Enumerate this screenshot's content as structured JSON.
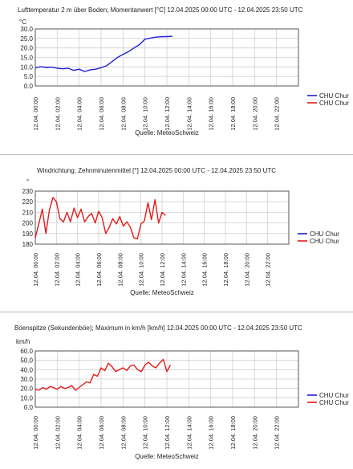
{
  "chart_data": [
    {
      "type": "line",
      "title": "Lufttemperatur 2 m über Boden; Momentanwert [°C]  12.04.2025 00:00 UTC - 12.04.2025 23:50 UTC",
      "ylabel": "°C",
      "source": "Quelle: MeteoSchweiz",
      "ylim": [
        0,
        30
      ],
      "yticks": [
        "0.0",
        "5.0",
        "10.0",
        "15.0",
        "20.0",
        "25.0",
        "30.0"
      ],
      "xticks": [
        "12.04. 00:00",
        "12.04. 02:00",
        "12.04. 04:00",
        "12.04. 06:00",
        "12.04. 08:00",
        "12.04. 10:00",
        "12.04. 12:00",
        "12.04. 14:00",
        "12.04. 16:00",
        "12.04. 18:00",
        "12.04. 20:00",
        "12.04. 22:00"
      ],
      "xlim_hours": [
        0,
        24
      ],
      "grid": true,
      "legend_position": "right",
      "series": [
        {
          "name": "CHU Chur",
          "color": "#1f1fd6",
          "x": [
            0,
            0.5,
            1,
            1.5,
            2,
            2.5,
            3,
            3.5,
            4,
            4.5,
            5,
            5.5,
            6,
            6.5,
            7,
            7.5,
            8,
            8.5,
            9,
            9.5,
            10,
            10.5,
            11,
            11.5,
            12,
            12.5
          ],
          "values": [
            9.5,
            10.1,
            9.7,
            9.9,
            9.3,
            9.0,
            9.3,
            8.2,
            8.8,
            7.6,
            8.4,
            8.8,
            9.6,
            10.6,
            12.8,
            15.0,
            16.6,
            18.1,
            20.0,
            21.7,
            24.6,
            25.2,
            25.7,
            25.9,
            26.0,
            26.1
          ]
        },
        {
          "name": "CHU Chur",
          "color": "#e21b1b",
          "x": [],
          "values": []
        }
      ]
    },
    {
      "type": "line",
      "title": "Windrichtung; Zehnminutenmittel [°]  12.04.2025 00:00 UTC - 12.04.2025 23:50 UTC",
      "ylabel": "°",
      "source": "Quelle: MeteoSchweiz",
      "ylim": [
        180,
        230
      ],
      "yticks": [
        "180",
        "190",
        "200",
        "210",
        "220",
        "230"
      ],
      "xticks": [
        "12.04. 00:00",
        "12.04. 02:00",
        "12.04. 04:00",
        "12.04. 06:00",
        "12.04. 08:00",
        "12.04. 10:00",
        "12.04. 12:00",
        "12.04. 14:00",
        "12.04. 16:00",
        "12.04. 18:00",
        "12.04. 20:00",
        "12.04. 22:00"
      ],
      "xlim_hours": [
        0,
        24
      ],
      "grid": true,
      "legend_position": "right",
      "series": [
        {
          "name": "CHU Chur",
          "color": "#1f1fd6",
          "x": [],
          "values": []
        },
        {
          "name": "CHU Chur",
          "color": "#e21b1b",
          "x": [
            0,
            0.33,
            0.67,
            1,
            1.33,
            1.67,
            2,
            2.33,
            2.67,
            3,
            3.33,
            3.67,
            4,
            4.33,
            4.67,
            5,
            5.33,
            5.67,
            6,
            6.33,
            6.67,
            7,
            7.33,
            7.67,
            8,
            8.33,
            8.67,
            9,
            9.33,
            9.67,
            10,
            10.33,
            10.67,
            11,
            11.33,
            11.67,
            12,
            12.33
          ],
          "values": [
            186,
            199,
            213,
            190,
            212,
            224,
            220,
            204,
            201,
            210,
            201,
            214,
            205,
            213,
            201,
            206,
            209,
            200,
            211,
            205,
            190,
            196,
            204,
            199,
            206,
            197,
            201,
            196,
            186,
            185,
            199,
            202,
            219,
            203,
            222,
            200,
            210,
            207
          ]
        }
      ]
    },
    {
      "type": "line",
      "title": "Böenspitze (Sekundenböe); Maximum in km/h [km/h]  12.04.2025 00:00 UTC - 12.04.2025 23:50 UTC",
      "ylabel": "km/h",
      "source": "Quelle: MeteoSchweiz",
      "ylim": [
        0,
        60
      ],
      "yticks": [
        "0.0",
        "10.0",
        "20.0",
        "30.0",
        "40.0",
        "50.0",
        "60.0"
      ],
      "xticks": [
        "12.04. 00:00",
        "12.04. 02:00",
        "12.04. 04:00",
        "12.04. 06:00",
        "12.04. 08:00",
        "12.04. 10:00",
        "12.04. 12:00",
        "12.04. 14:00",
        "12.04. 16:00",
        "12.04. 18:00",
        "12.04. 20:00",
        "12.04. 22:00"
      ],
      "xlim_hours": [
        0,
        24
      ],
      "grid": true,
      "legend_position": "right",
      "series": [
        {
          "name": "CHU Chur",
          "color": "#1f1fd6",
          "x": [],
          "values": []
        },
        {
          "name": "CHU Chur",
          "color": "#e21b1b",
          "x": [
            0,
            0.33,
            0.67,
            1,
            1.33,
            1.67,
            2,
            2.33,
            2.67,
            3,
            3.33,
            3.67,
            4,
            4.33,
            4.67,
            5,
            5.33,
            5.67,
            6,
            6.33,
            6.67,
            7,
            7.33,
            7.67,
            8,
            8.33,
            8.67,
            9,
            9.33,
            9.67,
            10,
            10.33,
            10.67,
            11,
            11.33,
            11.67,
            12,
            12.33
          ],
          "values": [
            19,
            18,
            21,
            19,
            22,
            21,
            19,
            22,
            20,
            21,
            23,
            18,
            21,
            24,
            27,
            26,
            35,
            33,
            42,
            39,
            47,
            43,
            38,
            40,
            42,
            39,
            44,
            45,
            40,
            38,
            45,
            48,
            44,
            42,
            47,
            51,
            38,
            45
          ]
        }
      ]
    }
  ]
}
